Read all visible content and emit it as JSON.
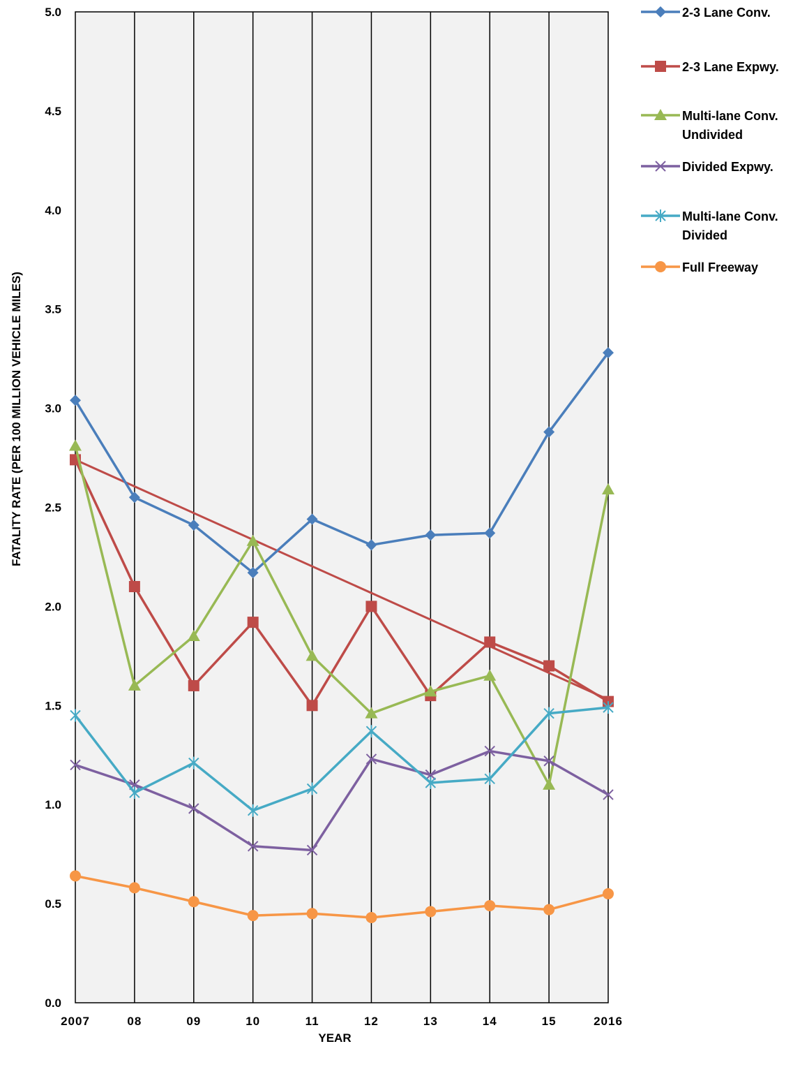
{
  "chart_data": {
    "type": "line",
    "title": "",
    "xlabel": "YEAR",
    "ylabel": "FATALITY RATE (PER 100 MILLION VEHICLE MILES)",
    "categories": [
      "2007",
      "08",
      "09",
      "10",
      "11",
      "12",
      "13",
      "14",
      "15",
      "2016"
    ],
    "ylim": [
      0,
      5
    ],
    "yticks": [
      "0.0",
      "0.5",
      "1.0",
      "1.5",
      "2.0",
      "2.5",
      "3.0",
      "3.5",
      "4.0",
      "4.5",
      "5.0"
    ],
    "grid": "vertical",
    "legend_position": "right",
    "series": [
      {
        "name": "2-3 Lane Conv.",
        "color": "#4a7ebb",
        "marker": "diamond",
        "values": [
          3.04,
          2.55,
          2.41,
          2.17,
          2.44,
          2.31,
          2.36,
          2.37,
          2.88,
          3.28
        ]
      },
      {
        "name": "2-3 Lane Expwy.",
        "color": "#be4b48",
        "marker": "square",
        "values": [
          2.74,
          2.1,
          1.6,
          1.92,
          1.5,
          2.0,
          1.55,
          1.82,
          1.7,
          1.52
        ]
      },
      {
        "name": "Multi-lane Conv. Undivided",
        "color": "#98b954",
        "marker": "triangle",
        "values": [
          2.81,
          1.6,
          1.85,
          2.33,
          1.75,
          1.46,
          1.57,
          1.65,
          1.1,
          2.59
        ]
      },
      {
        "name": "Divided Expwy.",
        "color": "#7d60a0",
        "marker": "x",
        "values": [
          1.2,
          1.1,
          0.98,
          0.79,
          0.77,
          1.23,
          1.15,
          1.27,
          1.22,
          1.05
        ]
      },
      {
        "name": "Multi-lane Conv. Divided",
        "color": "#46aac5",
        "marker": "asterisk",
        "values": [
          1.45,
          1.06,
          1.21,
          0.97,
          1.08,
          1.37,
          1.11,
          1.13,
          1.46,
          1.49
        ]
      },
      {
        "name": "Full Freeway",
        "color": "#f79646",
        "marker": "circle",
        "values": [
          0.64,
          0.58,
          0.51,
          0.44,
          0.45,
          0.43,
          0.46,
          0.49,
          0.47,
          0.55
        ]
      }
    ],
    "trendline": {
      "series": "2-3 Lane Expwy.",
      "color": "#be4b48",
      "from": 2.74,
      "to": 1.53
    }
  }
}
